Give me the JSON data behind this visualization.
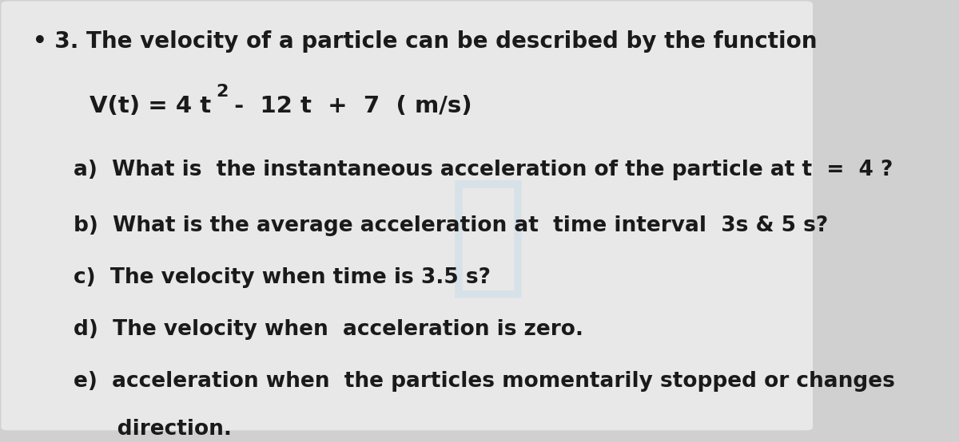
{
  "background_color": "#d0d0d0",
  "card_color": "#e8e8e8",
  "text_color": "#1a1a1a",
  "bullet": "•",
  "line1": " 3. The velocity of a particle can be described by the function",
  "line2_normal": "V(t) = 4 t",
  "line2_super": "2",
  "line2_rest": " -  12 t  +  7  ( m/s)",
  "line3": "a)  What is  the instantaneous acceleration of the particle at t  =  4 ?",
  "line4": "b)  What is the average acceleration at  time interval  3s & 5 s?",
  "line5": "c)  The velocity when time is 3.5 s?",
  "line6": "d)  The velocity when  acceleration is zero.",
  "line7": "e)  acceleration when  the particles momentarily stopped or changes",
  "line8": "      direction.",
  "font_size_title": 20,
  "font_size_body": 19,
  "font_size_formula": 21,
  "watermark_color": "#b8d4e8",
  "watermark_alpha": 0.35
}
